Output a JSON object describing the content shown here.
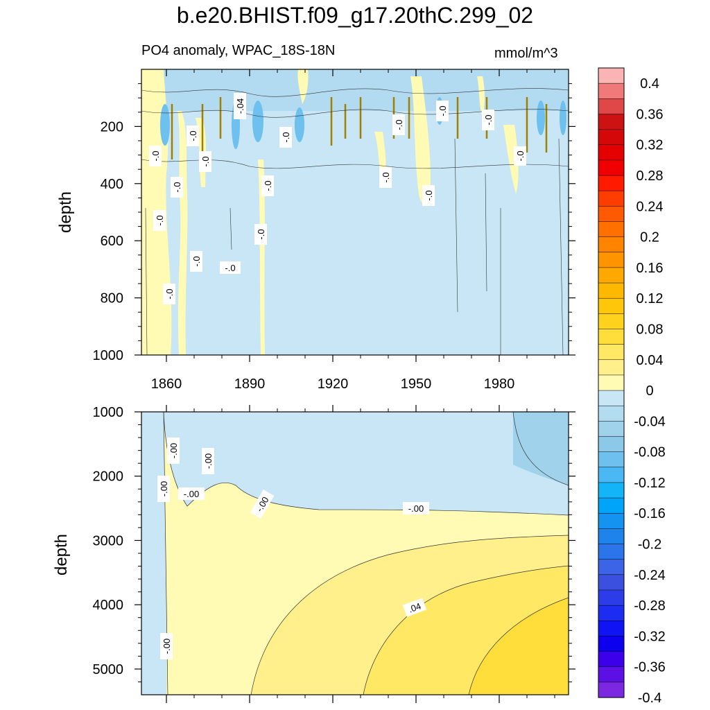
{
  "title": "b.e20.BHIST.f09_g17.20thC.299_02",
  "subtitle": "PO4 anomaly, WPAC_18S-18N",
  "units": "mmol/m^3",
  "chart_data": [
    {
      "type": "heatmap",
      "panel": "upper",
      "ylabel": "depth",
      "xlabel": "",
      "xlim": [
        1851,
        2005
      ],
      "ylim": [
        1000,
        0
      ],
      "x_ticks": [
        "1860",
        "1890",
        "1920",
        "1950",
        "1980"
      ],
      "y_ticks": [
        "200",
        "400",
        "600",
        "800",
        "1000"
      ],
      "contour_labels": [
        "-.04",
        "-.0",
        "-.0",
        "-.0",
        "-.0",
        "-.0",
        "-.0",
        "-.0",
        "-.0",
        "-.0",
        "-.0",
        "-.0",
        "-.0",
        "-.0",
        "-.0",
        "-.0",
        "-.0"
      ],
      "description_values": {
        "background_range": [
          -0.04,
          0
        ],
        "positive_patches_max": 0.08,
        "negative_patches_min": -0.08
      }
    },
    {
      "type": "heatmap",
      "panel": "lower",
      "ylabel": "depth",
      "xlabel": "",
      "xlim": [
        1851,
        2005
      ],
      "ylim": [
        5400,
        1000
      ],
      "x_ticks": [],
      "y_ticks": [
        "1000",
        "2000",
        "3000",
        "4000",
        "5000"
      ],
      "contour_labels": [
        "-.00",
        "-.00",
        "-.00",
        "-.00",
        "-.00",
        "-.00",
        ".04",
        "-.00"
      ],
      "description_values": {
        "upper_layer": [
          -0.04,
          0
        ],
        "deep_max": 0.07
      }
    }
  ],
  "colorbar": {
    "labels": [
      "0.4",
      "0.36",
      "0.32",
      "0.28",
      "0.24",
      "0.2",
      "0.16",
      "0.12",
      "0.08",
      "0.04",
      "0",
      "-0.04",
      "-0.08",
      "-0.12",
      "-0.16",
      "-0.2",
      "-0.24",
      "-0.28",
      "-0.32",
      "-0.36",
      "-0.4"
    ],
    "colors": [
      "#fbb4b4",
      "#f07a7a",
      "#e04848",
      "#cc1212",
      "#d40808",
      "#e40000",
      "#f00000",
      "#ff1a00",
      "#ff3d00",
      "#ff5a00",
      "#ff7000",
      "#ff8400",
      "#ff9400",
      "#ffa800",
      "#ffb800",
      "#ffc60a",
      "#ffd21e",
      "#ffde3c",
      "#ffe864",
      "#fff08c",
      "#fffab4",
      "#c8e6f6",
      "#b4dcf0",
      "#a0d2ec",
      "#8cc8e8",
      "#6ec0ee",
      "#4ab8f4",
      "#14b4f8",
      "#00a4f8",
      "#1494f0",
      "#1e84ec",
      "#2c74ea",
      "#3c64e6",
      "#3c50e0",
      "#2c3ce8",
      "#1c2cf0",
      "#1014f4",
      "#0c00ee",
      "#3c00ea",
      "#5c10e4",
      "#7c28e0"
    ]
  },
  "colors": {
    "blue_light": "#c8e6f6",
    "blue_mid": "#a0d2ec",
    "blue_dark": "#6ec0ee",
    "yellow_0": "#fffab4",
    "yellow_1": "#fff08c",
    "yellow_2": "#ffe864",
    "yellow_3": "#ffde3c",
    "brown": "#a08000"
  }
}
